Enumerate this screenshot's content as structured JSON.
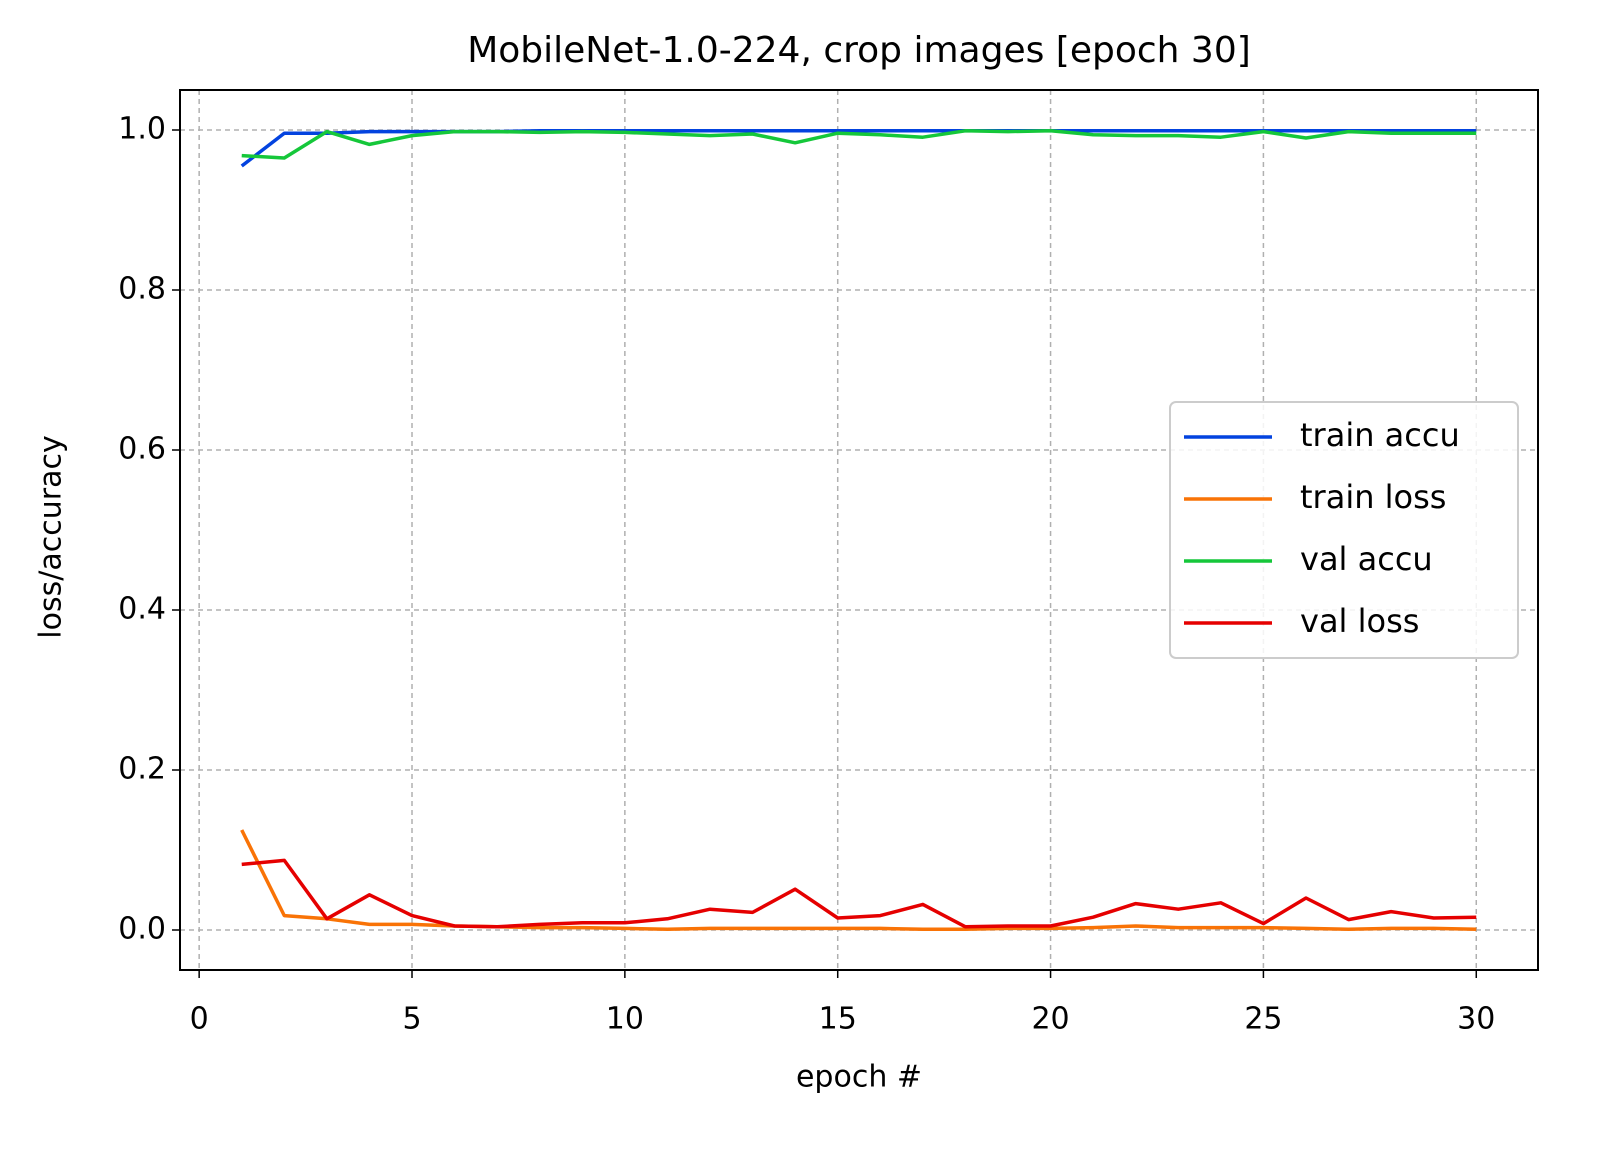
{
  "chart_data": {
    "type": "line",
    "title": "MobileNet-1.0-224, crop images [epoch 30]",
    "x_label": "epoch #",
    "y_label": "loss/accuracy",
    "x": [
      1,
      2,
      3,
      4,
      5,
      6,
      7,
      8,
      9,
      10,
      11,
      12,
      13,
      14,
      15,
      16,
      17,
      18,
      19,
      20,
      21,
      22,
      23,
      24,
      25,
      26,
      27,
      28,
      29,
      30
    ],
    "series": [
      {
        "name": "train accu",
        "color": "#0343df",
        "values": [
          0.955,
          0.996,
          0.996,
          0.998,
          0.998,
          0.998,
          0.998,
          0.999,
          0.999,
          0.999,
          0.999,
          0.999,
          0.999,
          0.999,
          0.999,
          0.999,
          0.999,
          0.999,
          0.999,
          0.999,
          0.999,
          0.999,
          0.999,
          0.999,
          0.999,
          0.999,
          0.999,
          0.999,
          0.999,
          0.999
        ]
      },
      {
        "name": "train loss",
        "color": "#f97306",
        "values": [
          0.125,
          0.018,
          0.014,
          0.007,
          0.007,
          0.005,
          0.004,
          0.003,
          0.003,
          0.002,
          0.001,
          0.002,
          0.002,
          0.002,
          0.002,
          0.002,
          0.001,
          0.001,
          0.002,
          0.002,
          0.003,
          0.005,
          0.003,
          0.003,
          0.003,
          0.002,
          0.001,
          0.002,
          0.002,
          0.001
        ]
      },
      {
        "name": "val accu",
        "color": "#15c73a",
        "values": [
          0.968,
          0.965,
          0.998,
          0.982,
          0.993,
          0.998,
          0.998,
          0.997,
          0.998,
          0.997,
          0.995,
          0.993,
          0.995,
          0.984,
          0.996,
          0.994,
          0.991,
          0.999,
          0.998,
          0.999,
          0.994,
          0.993,
          0.993,
          0.991,
          0.998,
          0.99,
          0.998,
          0.996,
          0.996,
          0.996
        ]
      },
      {
        "name": "val loss",
        "color": "#e50000",
        "values": [
          0.082,
          0.087,
          0.014,
          0.044,
          0.018,
          0.005,
          0.004,
          0.007,
          0.009,
          0.009,
          0.014,
          0.026,
          0.022,
          0.051,
          0.015,
          0.018,
          0.032,
          0.004,
          0.005,
          0.005,
          0.016,
          0.033,
          0.026,
          0.034,
          0.008,
          0.04,
          0.013,
          0.023,
          0.015,
          0.016
        ]
      }
    ],
    "xlim": [
      -0.45,
      31.45
    ],
    "ylim": [
      -0.05,
      1.05
    ],
    "xticks": [
      0,
      5,
      10,
      15,
      20,
      25,
      30
    ],
    "yticks": [
      {
        "value": 0,
        "label": "0.0"
      },
      0.2,
      0.4,
      0.6,
      0.8,
      {
        "value": 1,
        "label": "1.0"
      }
    ],
    "grid": true,
    "legend": "center right"
  }
}
